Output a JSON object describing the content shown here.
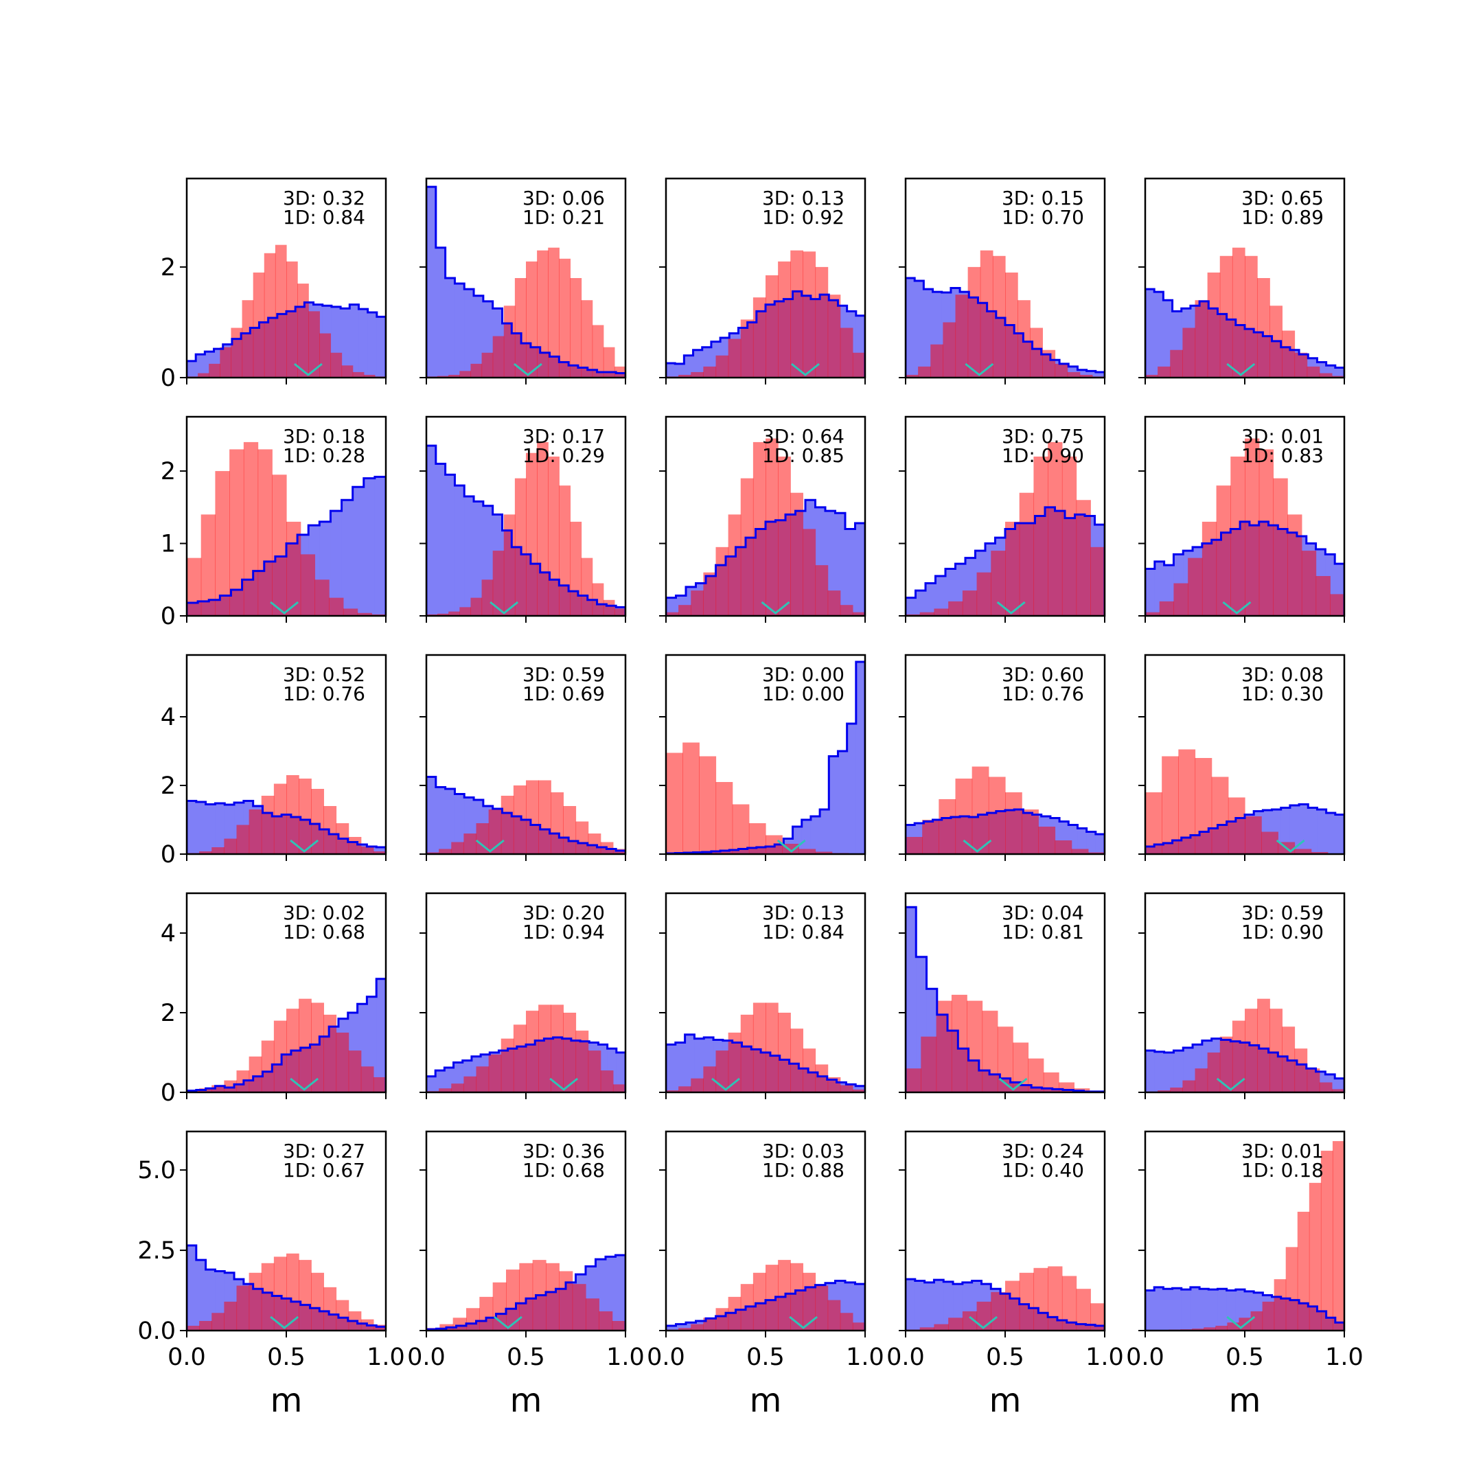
{
  "chart_data": {
    "type": "histogram-grid",
    "rows": 5,
    "cols": 5,
    "xlabel": "m",
    "xlim": [
      0,
      1
    ],
    "xticks": [
      "0.0",
      "0.5",
      "1.0"
    ],
    "colors": {
      "blue_line": "#0000ee",
      "blue_fill": "#7f7ff7",
      "red_fill": "#fb7f7f",
      "overlap": "#c03c78",
      "marker": "#2ec4b6"
    },
    "row_axes": [
      {
        "ylim": [
          0,
          3.6
        ],
        "yticks": [
          0,
          2
        ],
        "ytick_labels": [
          "0",
          "2"
        ]
      },
      {
        "ylim": [
          0,
          2.75
        ],
        "yticks": [
          0,
          1,
          2
        ],
        "ytick_labels": [
          "0",
          "1",
          "2"
        ]
      },
      {
        "ylim": [
          0,
          5.8
        ],
        "yticks": [
          0,
          2,
          4
        ],
        "ytick_labels": [
          "0",
          "2",
          "4"
        ]
      },
      {
        "ylim": [
          0,
          5.0
        ],
        "yticks": [
          0,
          2,
          4
        ],
        "ytick_labels": [
          "0",
          "2",
          "4"
        ]
      },
      {
        "ylim": [
          0,
          6.2
        ],
        "yticks": [
          0,
          2.5,
          5.0
        ],
        "ytick_labels": [
          "0.0",
          "2.5",
          "5.0"
        ]
      }
    ],
    "panels": [
      {
        "line1": "3D: 0.32",
        "line2": "1D: 0.84",
        "marker": 0.61,
        "blue": [
          0.3,
          0.42,
          0.47,
          0.52,
          0.6,
          0.7,
          0.8,
          0.9,
          1.0,
          1.08,
          1.15,
          1.2,
          1.28,
          1.36,
          1.32,
          1.3,
          1.28,
          1.25,
          1.32,
          1.24,
          1.18,
          1.1
        ],
        "red": [
          0.02,
          0.08,
          0.25,
          0.55,
          0.9,
          1.4,
          1.9,
          2.25,
          2.4,
          2.1,
          1.7,
          1.2,
          0.8,
          0.45,
          0.22,
          0.1,
          0.05,
          0.02
        ]
      },
      {
        "line1": "3D: 0.06",
        "line2": "1D: 0.21",
        "marker": 0.51,
        "blue": [
          3.45,
          2.35,
          1.8,
          1.7,
          1.6,
          1.48,
          1.38,
          1.25,
          0.98,
          0.8,
          0.62,
          0.55,
          0.45,
          0.38,
          0.28,
          0.22,
          0.18,
          0.14,
          0.1,
          0.1,
          0.08
        ],
        "red": [
          0.02,
          0.03,
          0.05,
          0.12,
          0.25,
          0.45,
          0.75,
          1.3,
          1.8,
          2.1,
          2.3,
          2.35,
          2.15,
          1.8,
          1.4,
          0.95,
          0.55,
          0.2
        ]
      },
      {
        "line1": "3D: 0.13",
        "line2": "1D: 0.92",
        "marker": 0.7,
        "blue": [
          0.26,
          0.25,
          0.4,
          0.5,
          0.55,
          0.65,
          0.72,
          0.8,
          0.9,
          1.0,
          1.2,
          1.32,
          1.38,
          1.42,
          1.56,
          1.48,
          1.42,
          1.5,
          1.4,
          1.3,
          1.2,
          1.12
        ],
        "red": [
          0.02,
          0.05,
          0.1,
          0.2,
          0.4,
          0.7,
          1.05,
          1.45,
          1.85,
          2.1,
          2.3,
          2.28,
          2.0,
          1.5,
          0.9,
          0.45
        ]
      },
      {
        "line1": "3D: 0.15",
        "line2": "1D: 0.70",
        "marker": 0.37,
        "blue": [
          1.8,
          1.75,
          1.6,
          1.55,
          1.54,
          1.62,
          1.55,
          1.45,
          1.35,
          1.2,
          1.08,
          0.95,
          0.8,
          0.65,
          0.52,
          0.42,
          0.32,
          0.25,
          0.2,
          0.14,
          0.12,
          0.1
        ],
        "red": [
          0.05,
          0.2,
          0.6,
          1.0,
          1.5,
          2.0,
          2.3,
          2.2,
          1.9,
          1.4,
          0.9,
          0.5,
          0.25,
          0.1,
          0.05,
          0.02
        ]
      },
      {
        "line1": "3D: 0.65",
        "line2": "1D: 0.89",
        "marker": 0.48,
        "blue": [
          1.6,
          1.55,
          1.4,
          1.2,
          1.25,
          1.3,
          1.38,
          1.25,
          1.15,
          1.05,
          0.95,
          0.88,
          0.82,
          0.75,
          0.66,
          0.55,
          0.5,
          0.42,
          0.35,
          0.28,
          0.22,
          0.18
        ],
        "red": [
          0.05,
          0.2,
          0.5,
          0.9,
          1.4,
          1.9,
          2.2,
          2.35,
          2.2,
          1.8,
          1.3,
          0.85,
          0.45,
          0.2,
          0.08,
          0.03
        ]
      },
      {
        "line1": "3D: 0.18",
        "line2": "1D: 0.28",
        "marker": 0.49,
        "blue": [
          0.18,
          0.2,
          0.22,
          0.28,
          0.36,
          0.5,
          0.62,
          0.75,
          0.82,
          1.0,
          1.12,
          1.25,
          1.3,
          1.45,
          1.6,
          1.78,
          1.9,
          1.92
        ],
        "red": [
          0.8,
          1.4,
          2.0,
          2.3,
          2.4,
          2.3,
          1.95,
          1.3,
          0.85,
          0.5,
          0.25,
          0.1,
          0.04,
          0.02
        ]
      },
      {
        "line1": "3D: 0.17",
        "line2": "1D: 0.29",
        "marker": 0.39,
        "blue": [
          2.35,
          2.1,
          1.95,
          1.8,
          1.65,
          1.58,
          1.52,
          1.4,
          1.18,
          0.95,
          0.85,
          0.72,
          0.6,
          0.5,
          0.42,
          0.34,
          0.28,
          0.22,
          0.16,
          0.14,
          0.12
        ],
        "red": [
          0.02,
          0.03,
          0.06,
          0.12,
          0.25,
          0.5,
          0.9,
          1.4,
          1.9,
          2.25,
          2.4,
          2.2,
          1.8,
          1.3,
          0.8,
          0.45,
          0.22,
          0.1
        ]
      },
      {
        "line1": "3D: 0.64",
        "line2": "1D: 0.85",
        "marker": 0.55,
        "blue": [
          0.25,
          0.28,
          0.4,
          0.45,
          0.55,
          0.7,
          0.82,
          0.95,
          1.08,
          1.2,
          1.3,
          1.32,
          1.4,
          1.45,
          1.6,
          1.5,
          1.45,
          1.42,
          1.2,
          1.28
        ],
        "red": [
          0.05,
          0.15,
          0.35,
          0.6,
          0.95,
          1.4,
          1.9,
          2.4,
          2.45,
          2.2,
          1.7,
          1.2,
          0.7,
          0.35,
          0.15,
          0.05
        ]
      },
      {
        "line1": "3D: 0.75",
        "line2": "1D: 0.90",
        "marker": 0.53,
        "blue": [
          0.25,
          0.35,
          0.45,
          0.55,
          0.65,
          0.72,
          0.8,
          0.9,
          1.0,
          1.08,
          1.2,
          1.28,
          1.28,
          1.38,
          1.5,
          1.45,
          1.35,
          1.4,
          1.38,
          1.26
        ],
        "red": [
          0.02,
          0.05,
          0.1,
          0.2,
          0.35,
          0.6,
          0.9,
          1.3,
          1.7,
          2.2,
          2.4,
          2.2,
          1.6,
          0.95
        ]
      },
      {
        "line1": "3D: 0.01",
        "line2": "1D: 0.83",
        "marker": 0.46,
        "blue": [
          0.65,
          0.75,
          0.7,
          0.85,
          0.9,
          0.95,
          1.0,
          1.05,
          1.15,
          1.2,
          1.3,
          1.25,
          1.3,
          1.25,
          1.2,
          1.15,
          1.1,
          1.0,
          0.92,
          0.85,
          0.72
        ],
        "red": [
          0.05,
          0.2,
          0.45,
          0.8,
          1.3,
          1.8,
          2.2,
          2.45,
          2.3,
          1.9,
          1.4,
          0.9,
          0.55,
          0.3
        ]
      },
      {
        "line1": "3D: 0.52",
        "line2": "1D: 0.76",
        "marker": 0.59,
        "blue": [
          1.55,
          1.52,
          1.45,
          1.48,
          1.44,
          1.5,
          1.55,
          1.4,
          1.2,
          1.1,
          1.15,
          1.08,
          1.0,
          0.88,
          0.72,
          0.58,
          0.45,
          0.35,
          0.28,
          0.22,
          0.2
        ],
        "red": [
          0.03,
          0.08,
          0.2,
          0.45,
          0.85,
          1.3,
          1.7,
          2.05,
          2.3,
          2.2,
          1.9,
          1.4,
          0.9,
          0.5,
          0.22,
          0.08
        ]
      },
      {
        "line1": "3D: 0.59",
        "line2": "1D: 0.69",
        "marker": 0.32,
        "blue": [
          2.25,
          1.95,
          1.9,
          1.75,
          1.65,
          1.58,
          1.4,
          1.32,
          1.2,
          1.1,
          1.0,
          0.85,
          0.72,
          0.6,
          0.48,
          0.38,
          0.32,
          0.26,
          0.2,
          0.15,
          0.1
        ],
        "red": [
          0.05,
          0.15,
          0.35,
          0.6,
          0.9,
          1.3,
          1.7,
          2.0,
          2.15,
          2.15,
          1.8,
          1.4,
          0.95,
          0.6,
          0.35,
          0.15
        ]
      },
      {
        "line1": "3D: 0.00",
        "line2": "1D: 0.00",
        "marker": 0.63,
        "blue": [
          0.02,
          0.03,
          0.04,
          0.05,
          0.06,
          0.08,
          0.1,
          0.12,
          0.15,
          0.18,
          0.2,
          0.22,
          0.28,
          0.45,
          0.8,
          1.0,
          1.1,
          1.3,
          2.85,
          3.0,
          3.8,
          5.6
        ],
        "red": [
          2.95,
          3.25,
          2.85,
          2.1,
          1.45,
          0.9,
          0.55,
          0.3,
          0.15,
          0.07,
          0.03,
          0.02
        ]
      },
      {
        "line1": "3D: 0.60",
        "line2": "1D: 0.76",
        "marker": 0.36,
        "blue": [
          0.85,
          0.9,
          0.95,
          1.0,
          1.05,
          1.08,
          1.1,
          1.08,
          1.15,
          1.2,
          1.25,
          1.28,
          1.3,
          1.2,
          1.15,
          1.1,
          1.05,
          0.95,
          0.85,
          0.75,
          0.65,
          0.58
        ],
        "red": [
          0.5,
          1.0,
          1.6,
          2.2,
          2.55,
          2.25,
          1.8,
          1.3,
          0.8,
          0.4,
          0.15,
          0.05
        ]
      },
      {
        "line1": "3D: 0.08",
        "line2": "1D: 0.30",
        "marker": 0.73,
        "blue": [
          0.22,
          0.28,
          0.32,
          0.4,
          0.48,
          0.55,
          0.65,
          0.75,
          0.85,
          0.95,
          1.05,
          1.15,
          1.25,
          1.28,
          1.3,
          1.35,
          1.42,
          1.45,
          1.35,
          1.3,
          1.2,
          1.15
        ],
        "red": [
          1.8,
          2.85,
          3.05,
          2.8,
          2.25,
          1.65,
          1.1,
          0.65,
          0.35,
          0.15,
          0.06,
          0.02
        ]
      },
      {
        "line1": "3D: 0.02",
        "line2": "1D: 0.68",
        "marker": 0.59,
        "blue": [
          0.04,
          0.06,
          0.1,
          0.16,
          0.12,
          0.2,
          0.3,
          0.4,
          0.52,
          0.7,
          0.95,
          1.05,
          1.12,
          1.2,
          1.4,
          1.65,
          1.85,
          2.0,
          2.22,
          2.4,
          2.85
        ],
        "red": [
          0.05,
          0.1,
          0.18,
          0.3,
          0.55,
          0.9,
          1.3,
          1.8,
          2.1,
          2.35,
          2.25,
          1.95,
          1.5,
          1.05,
          0.65,
          0.38
        ]
      },
      {
        "line1": "3D: 0.20",
        "line2": "1D: 0.94",
        "marker": 0.69,
        "blue": [
          0.4,
          0.55,
          0.62,
          0.75,
          0.8,
          0.9,
          0.95,
          1.0,
          1.05,
          1.1,
          1.15,
          1.2,
          1.3,
          1.35,
          1.38,
          1.35,
          1.3,
          1.28,
          1.25,
          1.2,
          1.1,
          1.0
        ],
        "red": [
          0.03,
          0.1,
          0.22,
          0.4,
          0.65,
          0.95,
          1.35,
          1.7,
          2.05,
          2.2,
          2.2,
          2.0,
          1.55,
          1.05,
          0.55,
          0.2
        ]
      },
      {
        "line1": "3D: 0.13",
        "line2": "1D: 0.84",
        "marker": 0.3,
        "blue": [
          1.2,
          1.25,
          1.45,
          1.35,
          1.38,
          1.32,
          1.3,
          1.25,
          1.15,
          1.08,
          1.0,
          0.92,
          0.82,
          0.72,
          0.6,
          0.5,
          0.4,
          0.32,
          0.25,
          0.2,
          0.16
        ],
        "red": [
          0.05,
          0.15,
          0.35,
          0.65,
          1.05,
          1.5,
          1.95,
          2.25,
          2.25,
          2.0,
          1.6,
          1.1,
          0.7,
          0.38,
          0.18,
          0.07
        ]
      },
      {
        "line1": "3D: 0.04",
        "line2": "1D: 0.81",
        "marker": 0.54,
        "blue": [
          4.65,
          3.4,
          2.6,
          1.95,
          1.55,
          1.1,
          0.8,
          0.55,
          0.45,
          0.35,
          0.25,
          0.18,
          0.12,
          0.1,
          0.08,
          0.06,
          0.04,
          0.02,
          0.02
        ],
        "red": [
          0.6,
          1.4,
          2.3,
          2.45,
          2.3,
          2.05,
          1.65,
          1.25,
          0.85,
          0.5,
          0.25,
          0.1,
          0.04
        ]
      },
      {
        "line1": "3D: 0.59",
        "line2": "1D: 0.90",
        "marker": 0.43,
        "blue": [
          1.05,
          1.02,
          1.0,
          1.05,
          1.12,
          1.2,
          1.3,
          1.35,
          1.32,
          1.28,
          1.25,
          1.18,
          1.1,
          1.0,
          0.9,
          0.8,
          0.7,
          0.6,
          0.52,
          0.45,
          0.35
        ],
        "red": [
          0.02,
          0.05,
          0.12,
          0.3,
          0.6,
          1.0,
          1.4,
          1.8,
          2.1,
          2.35,
          2.1,
          1.65,
          1.1,
          0.6,
          0.25,
          0.08
        ]
      },
      {
        "line1": "3D: 0.27",
        "line2": "1D: 0.67",
        "marker": 0.49,
        "blue": [
          2.65,
          2.2,
          1.9,
          1.85,
          1.8,
          1.6,
          1.45,
          1.3,
          1.18,
          1.08,
          1.0,
          0.9,
          0.8,
          0.7,
          0.6,
          0.5,
          0.4,
          0.3,
          0.22,
          0.16,
          0.12
        ],
        "red": [
          0.15,
          0.3,
          0.55,
          0.9,
          1.4,
          1.8,
          2.1,
          2.3,
          2.4,
          2.2,
          1.8,
          1.35,
          0.95,
          0.6,
          0.35,
          0.18
        ]
      },
      {
        "line1": "3D: 0.36",
        "line2": "1D: 0.68",
        "marker": 0.41,
        "blue": [
          0.04,
          0.06,
          0.1,
          0.15,
          0.22,
          0.3,
          0.4,
          0.52,
          0.68,
          0.85,
          1.0,
          1.1,
          1.2,
          1.3,
          1.5,
          1.75,
          2.0,
          2.22,
          2.3,
          2.35
        ],
        "red": [
          0.08,
          0.2,
          0.4,
          0.7,
          1.05,
          1.5,
          1.9,
          2.1,
          2.2,
          2.1,
          1.85,
          1.45,
          1.0,
          0.6,
          0.3
        ]
      },
      {
        "line1": "3D: 0.03",
        "line2": "1D: 0.88",
        "marker": 0.69,
        "blue": [
          0.15,
          0.2,
          0.25,
          0.3,
          0.38,
          0.45,
          0.55,
          0.65,
          0.75,
          0.85,
          0.95,
          1.05,
          1.15,
          1.25,
          1.35,
          1.42,
          1.48,
          1.55,
          1.5,
          1.45
        ],
        "red": [
          0.03,
          0.08,
          0.2,
          0.4,
          0.7,
          1.05,
          1.45,
          1.8,
          2.05,
          2.2,
          2.1,
          1.8,
          1.4,
          0.95,
          0.55,
          0.25
        ]
      },
      {
        "line1": "3D: 0.24",
        "line2": "1D: 0.40",
        "marker": 0.39,
        "blue": [
          1.6,
          1.55,
          1.5,
          1.58,
          1.52,
          1.45,
          1.5,
          1.55,
          1.45,
          1.3,
          1.15,
          1.0,
          0.82,
          0.7,
          0.55,
          0.42,
          0.32,
          0.25,
          0.2,
          0.18,
          0.15
        ],
        "red": [
          0.03,
          0.1,
          0.2,
          0.4,
          0.6,
          0.9,
          1.2,
          1.55,
          1.8,
          1.95,
          2.0,
          1.7,
          1.3,
          0.85
        ]
      },
      {
        "line1": "3D: 0.01",
        "line2": "1D: 0.18",
        "marker": 0.48,
        "blue": [
          1.25,
          1.35,
          1.3,
          1.32,
          1.28,
          1.35,
          1.3,
          1.28,
          1.3,
          1.25,
          1.28,
          1.22,
          1.18,
          1.1,
          1.05,
          1.0,
          0.95,
          0.85,
          0.75,
          0.6,
          0.4,
          0.25
        ],
        "red": [
          0.02,
          0.02,
          0.03,
          0.04,
          0.06,
          0.1,
          0.15,
          0.25,
          0.4,
          0.6,
          0.9,
          1.6,
          2.6,
          3.7,
          4.6,
          5.6,
          5.9
        ]
      }
    ]
  }
}
